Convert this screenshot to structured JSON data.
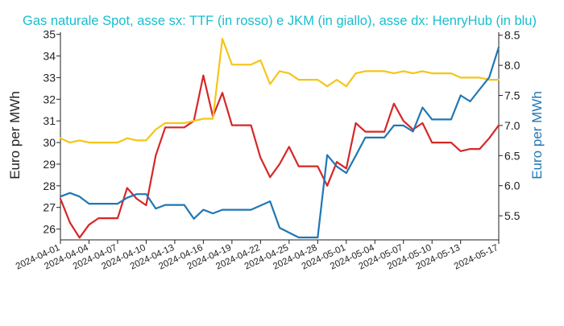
{
  "chart_data": {
    "type": "line",
    "title": "Gas naturale Spot, asse sx: TTF (in rosso) e JKM (in giallo), asse dx: HenryHub (in blu)",
    "ylabel_left": "Euro per MWh",
    "ylabel_right": "Euro per MWh",
    "x_range": [
      "2024-04-01",
      "2024-05-17"
    ],
    "x_ticks": [
      "2024-04-01",
      "2024-04-04",
      "2024-04-07",
      "2024-04-10",
      "2024-04-13",
      "2024-04-16",
      "2024-04-19",
      "2024-04-22",
      "2024-04-25",
      "2024-04-28",
      "2024-05-01",
      "2024-05-04",
      "2024-05-07",
      "2024-05-10",
      "2024-05-13",
      "2024-05-17"
    ],
    "y_left_range": [
      25.5,
      35.1
    ],
    "y_left_ticks": [
      26,
      27,
      28,
      29,
      30,
      31,
      32,
      33,
      34,
      35
    ],
    "y_right_range": [
      5.1,
      8.55
    ],
    "y_right_ticks": [
      5.5,
      6.0,
      6.5,
      7.0,
      7.5,
      8.0,
      8.5
    ],
    "grid": false,
    "colors": {
      "title": "#17becf",
      "right_axis_label": "#1f77b4",
      "text": "#222222"
    },
    "series": [
      {
        "axis": "left",
        "color": "#d62728",
        "points": [
          [
            "2024-04-01",
            27.4
          ],
          [
            "2024-04-02",
            26.3
          ],
          [
            "2024-04-03",
            25.6
          ],
          [
            "2024-04-04",
            26.2
          ],
          [
            "2024-04-05",
            26.5
          ],
          [
            "2024-04-06",
            26.5
          ],
          [
            "2024-04-07",
            26.5
          ],
          [
            "2024-04-08",
            27.9
          ],
          [
            "2024-04-09",
            27.4
          ],
          [
            "2024-04-10",
            27.1
          ],
          [
            "2024-04-11",
            29.4
          ],
          [
            "2024-04-12",
            30.7
          ],
          [
            "2024-04-13",
            30.7
          ],
          [
            "2024-04-14",
            30.7
          ],
          [
            "2024-04-15",
            31.0
          ],
          [
            "2024-04-16",
            33.1
          ],
          [
            "2024-04-17",
            31.2
          ],
          [
            "2024-04-18",
            32.3
          ],
          [
            "2024-04-19",
            30.8
          ],
          [
            "2024-04-20",
            30.8
          ],
          [
            "2024-04-21",
            30.8
          ],
          [
            "2024-04-22",
            29.3
          ],
          [
            "2024-04-23",
            28.4
          ],
          [
            "2024-04-24",
            29.0
          ],
          [
            "2024-04-25",
            29.8
          ],
          [
            "2024-04-26",
            28.9
          ],
          [
            "2024-04-27",
            28.9
          ],
          [
            "2024-04-28",
            28.9
          ],
          [
            "2024-04-29",
            28.0
          ],
          [
            "2024-04-30",
            29.1
          ],
          [
            "2024-05-01",
            28.8
          ],
          [
            "2024-05-02",
            30.9
          ],
          [
            "2024-05-03",
            30.5
          ],
          [
            "2024-05-04",
            30.5
          ],
          [
            "2024-05-05",
            30.5
          ],
          [
            "2024-05-06",
            31.8
          ],
          [
            "2024-05-07",
            31.0
          ],
          [
            "2024-05-08",
            30.6
          ],
          [
            "2024-05-09",
            30.9
          ],
          [
            "2024-05-10",
            30.0
          ],
          [
            "2024-05-11",
            30.0
          ],
          [
            "2024-05-12",
            30.0
          ],
          [
            "2024-05-13",
            29.6
          ],
          [
            "2024-05-14",
            29.7
          ],
          [
            "2024-05-15",
            29.7
          ],
          [
            "2024-05-16",
            30.2
          ],
          [
            "2024-05-17",
            30.8
          ]
        ]
      },
      {
        "axis": "left",
        "color": "#f5c518",
        "points": [
          [
            "2024-04-01",
            30.2
          ],
          [
            "2024-04-02",
            30.0
          ],
          [
            "2024-04-03",
            30.1
          ],
          [
            "2024-04-04",
            30.0
          ],
          [
            "2024-04-05",
            30.0
          ],
          [
            "2024-04-06",
            30.0
          ],
          [
            "2024-04-07",
            30.0
          ],
          [
            "2024-04-08",
            30.2
          ],
          [
            "2024-04-09",
            30.1
          ],
          [
            "2024-04-10",
            30.1
          ],
          [
            "2024-04-11",
            30.6
          ],
          [
            "2024-04-12",
            30.9
          ],
          [
            "2024-04-13",
            30.9
          ],
          [
            "2024-04-14",
            30.9
          ],
          [
            "2024-04-15",
            31.0
          ],
          [
            "2024-04-16",
            31.1
          ],
          [
            "2024-04-17",
            31.1
          ],
          [
            "2024-04-18",
            34.8
          ],
          [
            "2024-04-19",
            33.6
          ],
          [
            "2024-04-20",
            33.6
          ],
          [
            "2024-04-21",
            33.6
          ],
          [
            "2024-04-22",
            33.8
          ],
          [
            "2024-04-23",
            32.7
          ],
          [
            "2024-04-24",
            33.3
          ],
          [
            "2024-04-25",
            33.2
          ],
          [
            "2024-04-26",
            32.9
          ],
          [
            "2024-04-27",
            32.9
          ],
          [
            "2024-04-28",
            32.9
          ],
          [
            "2024-04-29",
            32.6
          ],
          [
            "2024-04-30",
            32.9
          ],
          [
            "2024-05-01",
            32.6
          ],
          [
            "2024-05-02",
            33.2
          ],
          [
            "2024-05-03",
            33.3
          ],
          [
            "2024-05-04",
            33.3
          ],
          [
            "2024-05-05",
            33.3
          ],
          [
            "2024-05-06",
            33.2
          ],
          [
            "2024-05-07",
            33.3
          ],
          [
            "2024-05-08",
            33.2
          ],
          [
            "2024-05-09",
            33.3
          ],
          [
            "2024-05-10",
            33.2
          ],
          [
            "2024-05-11",
            33.2
          ],
          [
            "2024-05-12",
            33.2
          ],
          [
            "2024-05-13",
            33.0
          ],
          [
            "2024-05-14",
            33.0
          ],
          [
            "2024-05-15",
            33.0
          ],
          [
            "2024-05-16",
            32.9
          ],
          [
            "2024-05-17",
            32.9
          ]
        ]
      },
      {
        "axis": "right",
        "color": "#1f77b4",
        "points": [
          [
            "2024-04-01",
            5.82
          ],
          [
            "2024-04-02",
            5.88
          ],
          [
            "2024-04-03",
            5.82
          ],
          [
            "2024-04-04",
            5.7
          ],
          [
            "2024-04-05",
            5.7
          ],
          [
            "2024-04-06",
            5.7
          ],
          [
            "2024-04-07",
            5.7
          ],
          [
            "2024-04-08",
            5.8
          ],
          [
            "2024-04-09",
            5.86
          ],
          [
            "2024-04-10",
            5.86
          ],
          [
            "2024-04-11",
            5.62
          ],
          [
            "2024-04-12",
            5.68
          ],
          [
            "2024-04-13",
            5.68
          ],
          [
            "2024-04-14",
            5.68
          ],
          [
            "2024-04-15",
            5.45
          ],
          [
            "2024-04-16",
            5.6
          ],
          [
            "2024-04-17",
            5.54
          ],
          [
            "2024-04-18",
            5.6
          ],
          [
            "2024-04-19",
            5.6
          ],
          [
            "2024-04-20",
            5.6
          ],
          [
            "2024-04-21",
            5.6
          ],
          [
            "2024-04-22",
            5.67
          ],
          [
            "2024-04-23",
            5.74
          ],
          [
            "2024-04-24",
            5.3
          ],
          [
            "2024-04-25",
            5.22
          ],
          [
            "2024-04-26",
            5.14
          ],
          [
            "2024-04-27",
            5.14
          ],
          [
            "2024-04-28",
            5.14
          ],
          [
            "2024-04-29",
            6.51
          ],
          [
            "2024-04-30",
            6.32
          ],
          [
            "2024-05-01",
            6.21
          ],
          [
            "2024-05-02",
            6.5
          ],
          [
            "2024-05-03",
            6.8
          ],
          [
            "2024-05-04",
            6.8
          ],
          [
            "2024-05-05",
            6.8
          ],
          [
            "2024-05-06",
            7.0
          ],
          [
            "2024-05-07",
            7.0
          ],
          [
            "2024-05-08",
            6.9
          ],
          [
            "2024-05-09",
            7.3
          ],
          [
            "2024-05-10",
            7.1
          ],
          [
            "2024-05-11",
            7.1
          ],
          [
            "2024-05-12",
            7.1
          ],
          [
            "2024-05-13",
            7.5
          ],
          [
            "2024-05-14",
            7.4
          ],
          [
            "2024-05-15",
            7.6
          ],
          [
            "2024-05-16",
            7.8
          ],
          [
            "2024-05-17",
            8.3
          ]
        ]
      }
    ]
  }
}
